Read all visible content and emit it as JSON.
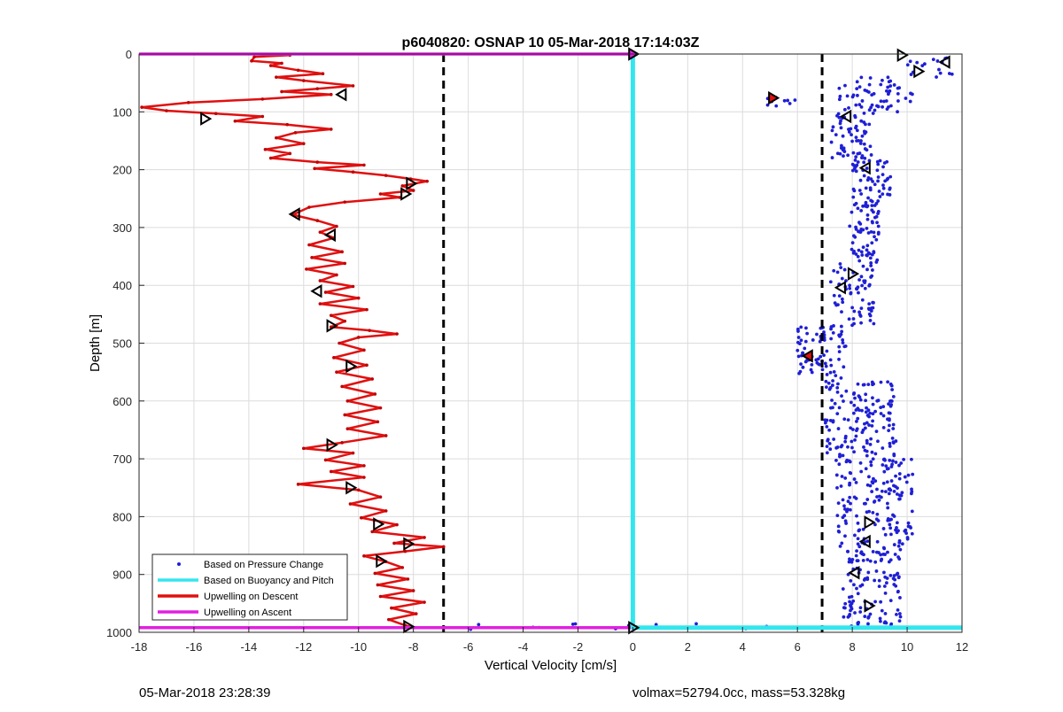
{
  "chart_data": {
    "type": "scatter",
    "title": "p6040820: OSNAP 10 05-Mar-2018 17:14:03Z",
    "xlabel": "Vertical Velocity [cm/s]",
    "ylabel": "Depth [m]",
    "xlim": [
      -18,
      12
    ],
    "ylim": [
      0,
      1000
    ],
    "y_reversed": true,
    "grid": true,
    "x_ticks": [
      -18,
      -16,
      -14,
      -12,
      -10,
      -8,
      -6,
      -4,
      -2,
      0,
      2,
      4,
      6,
      8,
      10,
      12
    ],
    "y_ticks": [
      0,
      100,
      200,
      300,
      400,
      500,
      600,
      700,
      800,
      900,
      1000
    ],
    "legend_location": "bottom-left",
    "legend": [
      {
        "label": "Based on Pressure Change",
        "color": "#1f1fd6",
        "marker": "dot"
      },
      {
        "label": "Based on Buoyancy and Pitch",
        "color": "#33e6ee",
        "marker": "line"
      },
      {
        "label": "Upwelling on Descent",
        "color": "#e01010",
        "marker": "line"
      },
      {
        "label": "Upwelling on Ascent",
        "color": "#e020e0",
        "marker": "line"
      }
    ],
    "reference_lines": [
      {
        "orientation": "vertical",
        "x": -6.9,
        "style": "dashed",
        "color": "#000000"
      },
      {
        "orientation": "vertical",
        "x": 6.9,
        "style": "dashed",
        "color": "#000000"
      }
    ],
    "series": [
      {
        "name": "Upwelling on Descent",
        "type": "line",
        "color": "#e01010",
        "points": [
          [
            -12.5,
            2
          ],
          [
            -13.8,
            5
          ],
          [
            -13.9,
            12
          ],
          [
            -12.8,
            16
          ],
          [
            -13.2,
            20
          ],
          [
            -12.2,
            28
          ],
          [
            -11.3,
            34
          ],
          [
            -13.0,
            40
          ],
          [
            -12.0,
            46
          ],
          [
            -10.2,
            55
          ],
          [
            -11.5,
            60
          ],
          [
            -12.8,
            65
          ],
          [
            -11.0,
            70
          ],
          [
            -13.5,
            78
          ],
          [
            -16.2,
            84
          ],
          [
            -17.9,
            92
          ],
          [
            -17.0,
            98
          ],
          [
            -15.2,
            103
          ],
          [
            -13.5,
            108
          ],
          [
            -14.5,
            116
          ],
          [
            -12.6,
            122
          ],
          [
            -11.0,
            130
          ],
          [
            -12.3,
            136
          ],
          [
            -13.0,
            145
          ],
          [
            -12.0,
            155
          ],
          [
            -13.4,
            165
          ],
          [
            -12.5,
            172
          ],
          [
            -13.2,
            180
          ],
          [
            -11.5,
            187
          ],
          [
            -9.8,
            192
          ],
          [
            -11.6,
            198
          ],
          [
            -10.2,
            204
          ],
          [
            -9.0,
            210
          ],
          [
            -8.1,
            216
          ],
          [
            -7.5,
            220
          ],
          [
            -8.4,
            228
          ],
          [
            -8.0,
            236
          ],
          [
            -9.2,
            242
          ],
          [
            -8.5,
            248
          ],
          [
            -10.5,
            256
          ],
          [
            -11.8,
            265
          ],
          [
            -12.4,
            278
          ],
          [
            -11.5,
            288
          ],
          [
            -10.8,
            298
          ],
          [
            -11.4,
            308
          ],
          [
            -10.9,
            318
          ],
          [
            -11.8,
            330
          ],
          [
            -10.6,
            342
          ],
          [
            -11.7,
            352
          ],
          [
            -10.5,
            362
          ],
          [
            -11.9,
            372
          ],
          [
            -10.8,
            382
          ],
          [
            -11.4,
            392
          ],
          [
            -10.2,
            402
          ],
          [
            -11.2,
            412
          ],
          [
            -10.0,
            422
          ],
          [
            -11.4,
            432
          ],
          [
            -9.7,
            442
          ],
          [
            -11.0,
            452
          ],
          [
            -10.5,
            462
          ],
          [
            -11.0,
            472
          ],
          [
            -9.6,
            478
          ],
          [
            -8.6,
            484
          ],
          [
            -10.0,
            490
          ],
          [
            -10.7,
            500
          ],
          [
            -9.8,
            512
          ],
          [
            -10.9,
            525
          ],
          [
            -9.7,
            538
          ],
          [
            -10.8,
            550
          ],
          [
            -9.5,
            562
          ],
          [
            -10.6,
            575
          ],
          [
            -9.4,
            588
          ],
          [
            -10.4,
            600
          ],
          [
            -9.2,
            612
          ],
          [
            -10.5,
            624
          ],
          [
            -9.3,
            636
          ],
          [
            -10.4,
            648
          ],
          [
            -9.0,
            660
          ],
          [
            -10.6,
            672
          ],
          [
            -12.0,
            682
          ],
          [
            -10.2,
            690
          ],
          [
            -11.2,
            702
          ],
          [
            -9.8,
            712
          ],
          [
            -11.0,
            722
          ],
          [
            -9.8,
            732
          ],
          [
            -12.2,
            744
          ],
          [
            -10.0,
            754
          ],
          [
            -9.2,
            766
          ],
          [
            -10.3,
            778
          ],
          [
            -9.0,
            790
          ],
          [
            -9.9,
            802
          ],
          [
            -8.6,
            814
          ],
          [
            -9.5,
            826
          ],
          [
            -7.6,
            836
          ],
          [
            -8.7,
            846
          ],
          [
            -6.9,
            852
          ],
          [
            -8.3,
            860
          ],
          [
            -9.8,
            868
          ],
          [
            -9.0,
            878
          ],
          [
            -8.4,
            888
          ],
          [
            -9.4,
            898
          ],
          [
            -8.2,
            908
          ],
          [
            -9.3,
            918
          ],
          [
            -8.0,
            928
          ],
          [
            -9.2,
            938
          ],
          [
            -7.6,
            948
          ],
          [
            -8.8,
            958
          ],
          [
            -7.9,
            968
          ],
          [
            -8.9,
            978
          ],
          [
            -8.3,
            988
          ],
          [
            -8.0,
            992
          ]
        ]
      },
      {
        "name": "Upwelling on Ascent",
        "type": "line",
        "color": "#e020e0",
        "points": [
          [
            -18,
            0
          ],
          [
            0,
            0
          ],
          [
            0,
            992
          ],
          [
            -18,
            992
          ]
        ]
      },
      {
        "name": "Based on Buoyancy and Pitch",
        "type": "line",
        "color": "#33e6ee",
        "points": [
          [
            0,
            0
          ],
          [
            0,
            992
          ],
          [
            12,
            992
          ]
        ]
      },
      {
        "name": "Based on Pressure Change",
        "type": "scatter",
        "color": "#1f1fd6",
        "clusters": [
          {
            "y": [
              0,
              40
            ],
            "x": [
              9.8,
              11.8
            ],
            "n": 18
          },
          {
            "y": [
              40,
              100
            ],
            "x": [
              7.5,
              10.2
            ],
            "n": 60
          },
          {
            "y": [
              75,
              90
            ],
            "x": [
              4.8,
              6.0
            ],
            "n": 10
          },
          {
            "y": [
              100,
              180
            ],
            "x": [
              7.2,
              8.8
            ],
            "n": 60
          },
          {
            "y": [
              180,
              260
            ],
            "x": [
              8.0,
              9.4
            ],
            "n": 60
          },
          {
            "y": [
              260,
              360
            ],
            "x": [
              7.9,
              9.0
            ],
            "n": 70
          },
          {
            "y": [
              360,
              470
            ],
            "x": [
              7.2,
              8.8
            ],
            "n": 70
          },
          {
            "y": [
              470,
              560
            ],
            "x": [
              6.0,
              7.8
            ],
            "n": 80
          },
          {
            "y": [
              560,
              700
            ],
            "x": [
              7.0,
              9.6
            ],
            "n": 150
          },
          {
            "y": [
              700,
              860
            ],
            "x": [
              7.4,
              10.2
            ],
            "n": 170
          },
          {
            "y": [
              860,
              990
            ],
            "x": [
              7.6,
              9.8
            ],
            "n": 120
          },
          {
            "y": [
              985,
              995
            ],
            "x": [
              -6.5,
              5.5
            ],
            "n": 14
          }
        ]
      }
    ],
    "annotations": [
      {
        "type": "triangle",
        "direction": "right",
        "x": 9.8,
        "y": 2,
        "fill": "none"
      },
      {
        "type": "triangle",
        "direction": "left",
        "x": 11.4,
        "y": 14,
        "fill": "none"
      },
      {
        "type": "triangle",
        "direction": "right",
        "x": 10.4,
        "y": 30,
        "fill": "none"
      },
      {
        "type": "triangle",
        "direction": "left",
        "x": -10.6,
        "y": 70,
        "fill": "none"
      },
      {
        "type": "triangle",
        "direction": "right",
        "x": 5.1,
        "y": 76,
        "fill": "red"
      },
      {
        "type": "triangle",
        "direction": "right",
        "x": -15.6,
        "y": 112,
        "fill": "none"
      },
      {
        "type": "triangle",
        "direction": "left",
        "x": 7.8,
        "y": 108,
        "fill": "none"
      },
      {
        "type": "triangle",
        "direction": "left",
        "x": 8.5,
        "y": 197,
        "fill": "none"
      },
      {
        "type": "triangle",
        "direction": "right",
        "x": -8.1,
        "y": 224,
        "fill": "none"
      },
      {
        "type": "triangle",
        "direction": "right",
        "x": -8.3,
        "y": 242,
        "fill": "none"
      },
      {
        "type": "triangle",
        "direction": "left",
        "x": -12.3,
        "y": 277,
        "fill": "none"
      },
      {
        "type": "triangle",
        "direction": "left",
        "x": -11.0,
        "y": 313,
        "fill": "none"
      },
      {
        "type": "triangle",
        "direction": "right",
        "x": 8.0,
        "y": 380,
        "fill": "none"
      },
      {
        "type": "triangle",
        "direction": "left",
        "x": -11.5,
        "y": 410,
        "fill": "none"
      },
      {
        "type": "triangle",
        "direction": "left",
        "x": 7.6,
        "y": 404,
        "fill": "none"
      },
      {
        "type": "triangle",
        "direction": "right",
        "x": -11.0,
        "y": 470,
        "fill": "none"
      },
      {
        "type": "triangle",
        "direction": "left",
        "x": 6.4,
        "y": 522,
        "fill": "red"
      },
      {
        "type": "triangle",
        "direction": "right",
        "x": -10.3,
        "y": 540,
        "fill": "none"
      },
      {
        "type": "triangle",
        "direction": "right",
        "x": -11.0,
        "y": 676,
        "fill": "none"
      },
      {
        "type": "triangle",
        "direction": "right",
        "x": -10.3,
        "y": 750,
        "fill": "none"
      },
      {
        "type": "triangle",
        "direction": "right",
        "x": 8.6,
        "y": 810,
        "fill": "none"
      },
      {
        "type": "triangle",
        "direction": "right",
        "x": -9.3,
        "y": 813,
        "fill": "none"
      },
      {
        "type": "triangle",
        "direction": "left",
        "x": 8.5,
        "y": 843,
        "fill": "none"
      },
      {
        "type": "triangle",
        "direction": "right",
        "x": -8.2,
        "y": 847,
        "fill": "none"
      },
      {
        "type": "triangle",
        "direction": "right",
        "x": -9.2,
        "y": 877,
        "fill": "none"
      },
      {
        "type": "triangle",
        "direction": "left",
        "x": 8.1,
        "y": 897,
        "fill": "none"
      },
      {
        "type": "triangle",
        "direction": "right",
        "x": 8.6,
        "y": 954,
        "fill": "none"
      },
      {
        "type": "triangle",
        "direction": "right",
        "x": -8.2,
        "y": 990,
        "fill": "none"
      },
      {
        "type": "triangle",
        "direction": "right",
        "x": 0.0,
        "y": 0,
        "fill": "magenta"
      },
      {
        "type": "triangle",
        "direction": "right",
        "x": 0.0,
        "y": 992,
        "fill": "none"
      }
    ]
  },
  "footer": {
    "left": "05-Mar-2018 23:28:39",
    "right": "volmax=52794.0cc, mass=53.328kg"
  }
}
